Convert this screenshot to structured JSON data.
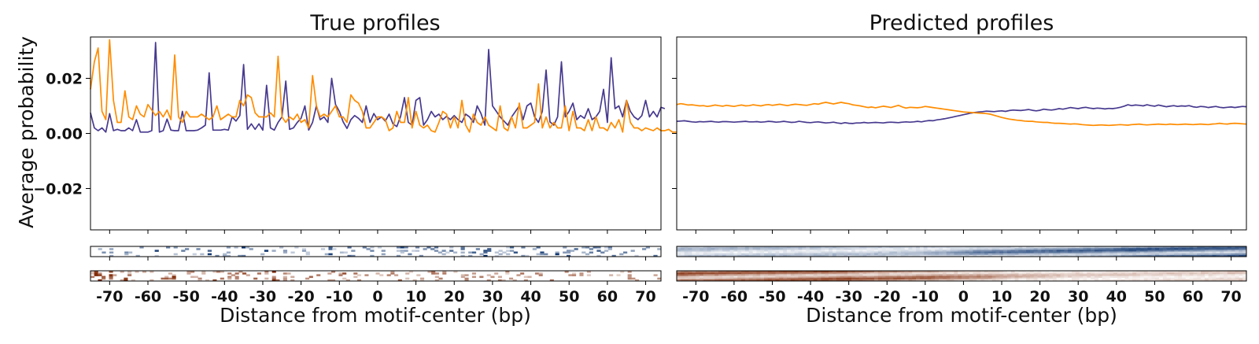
{
  "colors": {
    "strand_plus": "#473a8f",
    "strand_minus": "#ff8c00",
    "heatmap_plus_high": "#08306b",
    "heatmap_minus_high": "#7f2704",
    "frame": "#000000",
    "background": "#ffffff"
  },
  "chart_data": [
    {
      "type": "line",
      "title": "True profiles",
      "xlabel": "Distance from motif-center (bp)",
      "ylabel": "Average probability",
      "xlim": [
        -75,
        74
      ],
      "ylim": [
        -0.035,
        0.035
      ],
      "yticks": [
        -0.02,
        0.0,
        0.02
      ],
      "ytick_labels": [
        "−0.02",
        "0.00",
        "0.02"
      ],
      "xticks": [
        -70,
        -60,
        -50,
        -40,
        -30,
        -20,
        -10,
        0,
        10,
        20,
        30,
        40,
        50,
        60,
        70
      ],
      "xtick_labels": [
        "-70",
        "-60",
        "-50",
        "-40",
        "-30",
        "-20",
        "-10",
        "0",
        "10",
        "20",
        "30",
        "40",
        "50",
        "60",
        "70"
      ],
      "grid": false,
      "legend": "none",
      "x_start": -75,
      "x_step": 1,
      "series": [
        {
          "color": "#473a8f",
          "values": [
            0.0075,
            0.002,
            0.001,
            0.002,
            0.0005,
            0.0072,
            0.001,
            0.0015,
            0.001,
            0.001,
            0.002,
            0.001,
            0.005,
            0.0005,
            0.0005,
            0.0005,
            0.001,
            0.033,
            0.0005,
            0.001,
            0.0052,
            0.0012,
            0.001,
            0.001,
            0.008,
            0.001,
            0.001,
            0.001,
            0.0012,
            0.002,
            0.003,
            0.022,
            0.0012,
            0.0012,
            0.0012,
            0.0015,
            0.0012,
            0.006,
            0.0045,
            0.0065,
            0.025,
            0.0015,
            0.0035,
            0.0015,
            0.0035,
            0.0012,
            0.0175,
            0.002,
            0.0012,
            0.004,
            0.006,
            0.019,
            0.0015,
            0.002,
            0.004,
            0.0055,
            0.01,
            0.0012,
            0.004,
            0.01,
            0.005,
            0.006,
            0.004,
            0.02,
            0.0105,
            0.008,
            0.0042,
            0.0018,
            0.005,
            0.0065,
            0.0055,
            0.004,
            0.01,
            0.004,
            0.0072,
            0.005,
            0.006,
            0.0045,
            0.007,
            0.0035,
            0.0025,
            0.0062,
            0.013,
            0.004,
            0.003,
            0.012,
            0.013,
            0.003,
            0.005,
            0.008,
            0.006,
            0.007,
            0.005,
            0.0062,
            0.005,
            0.0065,
            0.005,
            0.004,
            0.007,
            0.006,
            0.004,
            0.01,
            0.0072,
            0.003,
            0.0305,
            0.01,
            0.008,
            0.006,
            0.0045,
            0.003,
            0.006,
            0.008,
            0.01,
            0.005,
            0.01,
            0.011,
            0.006,
            0.004,
            0.008,
            0.023,
            0.0042,
            0.003,
            0.006,
            0.026,
            0.006,
            0.008,
            0.011,
            0.005,
            0.0065,
            0.0055,
            0.009,
            0.005,
            0.006,
            0.008,
            0.016,
            0.004,
            0.0275,
            0.009,
            0.01,
            0.006,
            0.012,
            0.008,
            0.006,
            0.005,
            0.0065,
            0.012,
            0.006,
            0.008,
            0.006,
            0.0095,
            0.009
          ]
        },
        {
          "color": "#ff8c00",
          "values": [
            0.016,
            0.026,
            0.031,
            0.008,
            0.005,
            0.034,
            0.012,
            0.004,
            0.004,
            0.0155,
            0.006,
            0.005,
            0.01,
            0.007,
            0.006,
            0.0105,
            0.0085,
            0.0065,
            0.008,
            0.006,
            0.0085,
            0.005,
            0.0285,
            0.006,
            0.004,
            0.008,
            0.006,
            0.006,
            0.006,
            0.007,
            0.006,
            0.005,
            0.006,
            0.01,
            0.005,
            0.006,
            0.007,
            0.006,
            0.006,
            0.012,
            0.01,
            0.014,
            0.013,
            0.0075,
            0.006,
            0.006,
            0.006,
            0.0075,
            0.006,
            0.028,
            0.006,
            0.004,
            0.006,
            0.005,
            0.007,
            0.004,
            0.005,
            0.002,
            0.021,
            0.01,
            0.006,
            0.007,
            0.006,
            0.008,
            0.01,
            0.006,
            0.006,
            0.004,
            0.014,
            0.012,
            0.011,
            0.008,
            0.002,
            0.002,
            0.004,
            0.006,
            0.006,
            0.005,
            0.001,
            0.002,
            0.008,
            0.004,
            0.004,
            0.013,
            0.002,
            0.008,
            0.003,
            0.002,
            0.003,
            0.001,
            0.0005,
            0.004,
            0.008,
            0.007,
            0.002,
            0.006,
            0.002,
            0.012,
            0.003,
            0.0005,
            0.007,
            0.004,
            0.003,
            0.006,
            0.003,
            0.002,
            0.001,
            0.01,
            0.002,
            0.001,
            0.006,
            0.002,
            0.011,
            0.002,
            0.002,
            0.003,
            0.004,
            0.018,
            0.002,
            0.006,
            0.002,
            0.004,
            0.002,
            0.002,
            0.01,
            0.001,
            0.008,
            0.002,
            0.002,
            0.001,
            0.005,
            0.001,
            0.006,
            0.002,
            0.002,
            0.001,
            0.004,
            0.002,
            0.005,
            0.0005,
            0.012,
            0.004,
            0.002,
            0.002,
            0.001,
            0.002,
            0.0015,
            0.001,
            0.002,
            0.001,
            0.001,
            0.0015,
            0.0005,
            0.0005
          ]
        }
      ]
    },
    {
      "type": "line",
      "title": "Predicted profiles",
      "xlabel": "Distance from motif-center (bp)",
      "ylabel": "",
      "xlim": [
        -75,
        74
      ],
      "ylim": [
        -0.035,
        0.035
      ],
      "yticks": [
        -0.02,
        0.0,
        0.02
      ],
      "ytick_labels": [],
      "xticks": [
        -70,
        -60,
        -50,
        -40,
        -30,
        -20,
        -10,
        0,
        10,
        20,
        30,
        40,
        50,
        60,
        70
      ],
      "xtick_labels": [
        "-70",
        "-60",
        "-50",
        "-40",
        "-30",
        "-20",
        "-10",
        "0",
        "10",
        "20",
        "30",
        "40",
        "50",
        "60",
        "70"
      ],
      "grid": false,
      "legend": "none",
      "x_start": -75,
      "x_step": 1,
      "series": [
        {
          "color": "#473a8f",
          "values": [
            0.0044,
            0.0045,
            0.0046,
            0.0044,
            0.0042,
            0.0041,
            0.0043,
            0.0042,
            0.0043,
            0.0044,
            0.0042,
            0.0041,
            0.0043,
            0.0043,
            0.0042,
            0.0041,
            0.0042,
            0.0043,
            0.0044,
            0.0042,
            0.0042,
            0.0043,
            0.0041,
            0.0042,
            0.0044,
            0.0043,
            0.0041,
            0.0042,
            0.0044,
            0.0042,
            0.004,
            0.0041,
            0.0044,
            0.0042,
            0.004,
            0.0039,
            0.0041,
            0.0042,
            0.004,
            0.0038,
            0.0039,
            0.0041,
            0.0038,
            0.0036,
            0.0039,
            0.0037,
            0.0036,
            0.0038,
            0.0038,
            0.004,
            0.0038,
            0.0039,
            0.004,
            0.0039,
            0.0038,
            0.004,
            0.0041,
            0.004,
            0.0039,
            0.0041,
            0.0042,
            0.0041,
            0.0042,
            0.0044,
            0.0042,
            0.0045,
            0.0047,
            0.0046,
            0.0049,
            0.0051,
            0.0053,
            0.0056,
            0.0059,
            0.0062,
            0.0065,
            0.0068,
            0.0071,
            0.0074,
            0.0076,
            0.0078,
            0.0079,
            0.0081,
            0.008,
            0.0079,
            0.0081,
            0.0082,
            0.008,
            0.0083,
            0.0085,
            0.0084,
            0.0083,
            0.0085,
            0.0087,
            0.0084,
            0.0082,
            0.0084,
            0.0088,
            0.0086,
            0.0085,
            0.0087,
            0.009,
            0.0088,
            0.0091,
            0.0094,
            0.0092,
            0.009,
            0.0093,
            0.0095,
            0.0092,
            0.009,
            0.0092,
            0.0091,
            0.0089,
            0.0091,
            0.009,
            0.0092,
            0.0095,
            0.0099,
            0.0104,
            0.0101,
            0.0103,
            0.0102,
            0.01,
            0.0104,
            0.0101,
            0.0099,
            0.0103,
            0.01,
            0.0097,
            0.0099,
            0.0101,
            0.0098,
            0.01,
            0.0099,
            0.0101,
            0.0097,
            0.0095,
            0.0098,
            0.0097,
            0.0094,
            0.0096,
            0.0098,
            0.0095,
            0.0093,
            0.0095,
            0.0096,
            0.0094,
            0.0096,
            0.0098,
            0.0097
          ]
        },
        {
          "color": "#ff8c00",
          "values": [
            0.0105,
            0.0108,
            0.0106,
            0.0103,
            0.0104,
            0.0102,
            0.01,
            0.0101,
            0.0098,
            0.01,
            0.0103,
            0.0101,
            0.0099,
            0.0102,
            0.01,
            0.0098,
            0.0101,
            0.0103,
            0.01,
            0.0101,
            0.0104,
            0.0102,
            0.01,
            0.0103,
            0.0105,
            0.0102,
            0.0104,
            0.0106,
            0.0103,
            0.0101,
            0.0104,
            0.0106,
            0.0105,
            0.0103,
            0.0102,
            0.0105,
            0.0108,
            0.0106,
            0.011,
            0.0113,
            0.011,
            0.0107,
            0.011,
            0.0113,
            0.011,
            0.0108,
            0.0104,
            0.0102,
            0.01,
            0.0097,
            0.0094,
            0.0096,
            0.0093,
            0.0096,
            0.0099,
            0.0097,
            0.0094,
            0.0098,
            0.0102,
            0.0096,
            0.0092,
            0.0095,
            0.0094,
            0.0093,
            0.0095,
            0.0098,
            0.0096,
            0.0094,
            0.0092,
            0.009,
            0.0088,
            0.0086,
            0.0084,
            0.0082,
            0.008,
            0.0078,
            0.0077,
            0.0076,
            0.0075,
            0.0074,
            0.0073,
            0.0072,
            0.007,
            0.0066,
            0.0062,
            0.0058,
            0.0055,
            0.0052,
            0.005,
            0.0048,
            0.0047,
            0.0045,
            0.0044,
            0.0044,
            0.0042,
            0.0041,
            0.004,
            0.004,
            0.0038,
            0.0037,
            0.0037,
            0.0036,
            0.0035,
            0.0034,
            0.0035,
            0.0034,
            0.0032,
            0.0031,
            0.003,
            0.0029,
            0.003,
            0.0031,
            0.003,
            0.0029,
            0.003,
            0.0031,
            0.0032,
            0.0031,
            0.003,
            0.0032,
            0.0033,
            0.0034,
            0.0032,
            0.0031,
            0.0032,
            0.0033,
            0.0034,
            0.0033,
            0.0032,
            0.0034,
            0.0033,
            0.0032,
            0.0033,
            0.0034,
            0.0033,
            0.0032,
            0.0033,
            0.0034,
            0.0033,
            0.0032,
            0.0034,
            0.0035,
            0.0037,
            0.0035,
            0.0034,
            0.0036,
            0.0037,
            0.0036,
            0.0035,
            0.0034
          ]
        }
      ]
    },
    {
      "type": "heatmap",
      "panel": "True profiles",
      "strand": "plus",
      "colormap": "Blues",
      "rows": 6,
      "x_range": [
        -75,
        74
      ],
      "pattern": "sparse"
    },
    {
      "type": "heatmap",
      "panel": "True profiles",
      "strand": "minus",
      "colormap": "Oranges",
      "rows": 6,
      "x_range": [
        -75,
        74
      ],
      "pattern": "sparse"
    },
    {
      "type": "heatmap",
      "panel": "Predicted profiles",
      "strand": "plus",
      "colormap": "Blues",
      "rows": 6,
      "x_range": [
        -75,
        74
      ],
      "pattern": "smooth"
    },
    {
      "type": "heatmap",
      "panel": "Predicted profiles",
      "strand": "minus",
      "colormap": "Oranges",
      "rows": 6,
      "x_range": [
        -75,
        74
      ],
      "pattern": "smooth"
    }
  ]
}
